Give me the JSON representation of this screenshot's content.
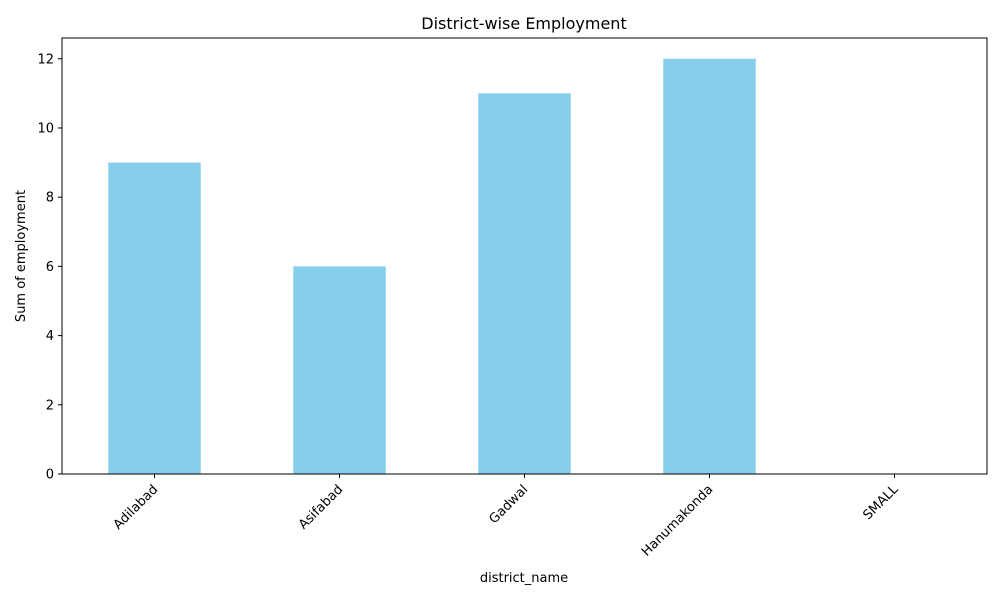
{
  "chart_data": {
    "type": "bar",
    "title": "District-wise Employment",
    "xlabel": "district_name",
    "ylabel": "Sum of employment",
    "categories": [
      "Adilabad",
      "Asifabad",
      "Gadwal",
      "Hanumakonda",
      "SMALL"
    ],
    "values": [
      9,
      6,
      11,
      12,
      0
    ],
    "ylim": [
      0,
      12.6
    ],
    "yticks": [
      0,
      2,
      4,
      6,
      8,
      10,
      12
    ],
    "bar_color": "#87CEEB",
    "grid": false,
    "legend": "none"
  }
}
